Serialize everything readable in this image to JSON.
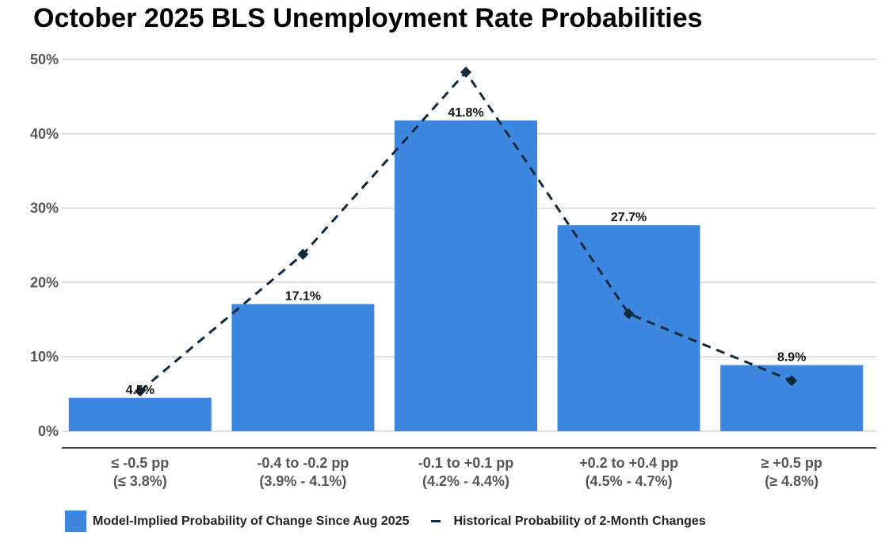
{
  "chart_data": {
    "type": "bar",
    "title": "October 2025 BLS Unemployment Rate Probabilities",
    "categories": [
      [
        "≤ -0.5 pp",
        "(≤ 3.8%)"
      ],
      [
        "-0.4 to -0.2 pp",
        "(3.9% - 4.1%)"
      ],
      [
        "-0.1 to +0.1 pp",
        "(4.2% - 4.4%)"
      ],
      [
        "+0.2 to +0.4 pp",
        "(4.5% - 4.7%)"
      ],
      [
        "≥ +0.5 pp",
        "(≥ 4.8%)"
      ]
    ],
    "series": [
      {
        "name": "Model-Implied Probability of Change Since Aug 2025",
        "type": "bar",
        "color": "#3d87e0",
        "values": [
          4.5,
          17.1,
          41.8,
          27.7,
          8.9
        ],
        "labels": [
          "4.5%",
          "17.1%",
          "41.8%",
          "27.7%",
          "8.9%"
        ]
      },
      {
        "name": "Historical Probability of 2-Month Changes",
        "type": "line",
        "style": "dashed",
        "marker": "diamond",
        "color": "#0f2a3f",
        "values": [
          5.4,
          23.8,
          48.3,
          15.8,
          6.8
        ]
      }
    ],
    "ylim": [
      0,
      50
    ],
    "yticks": [
      0,
      10,
      20,
      30,
      40,
      50
    ],
    "ytick_labels": [
      "0%",
      "10%",
      "20%",
      "30%",
      "40%",
      "50%"
    ],
    "xlabel": "",
    "ylabel": "",
    "grid": true,
    "legend_position": "bottom"
  }
}
